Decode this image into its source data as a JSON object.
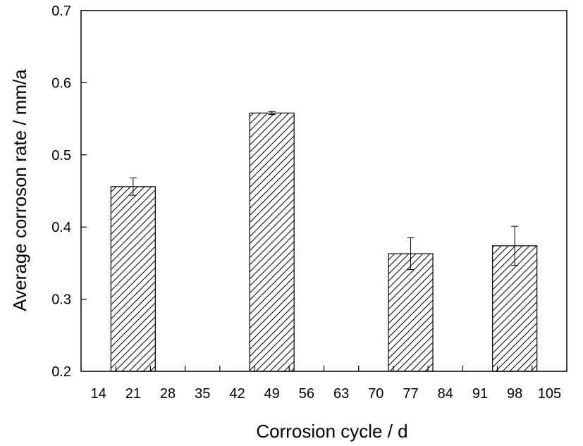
{
  "chart_data": {
    "type": "bar",
    "title": "",
    "xlabel": "Corrosion cycle / d",
    "ylabel": "Average corroson rate / mm/a",
    "x_ticks": [
      "14",
      "21",
      "28",
      "35",
      "42",
      "49",
      "56",
      "63",
      "70",
      "77",
      "84",
      "91",
      "98",
      "105"
    ],
    "y_ticks": [
      "0.2",
      "0.3",
      "0.4",
      "0.5",
      "0.6",
      "0.7"
    ],
    "ylim": [
      0.2,
      0.7
    ],
    "categories": [
      "21",
      "49",
      "77",
      "98"
    ],
    "values": [
      0.456,
      0.558,
      0.363,
      0.374
    ],
    "errors": [
      0.012,
      0.002,
      0.022,
      0.027
    ],
    "bar_fill": "hatched-diagonal",
    "grid": false,
    "colors": {
      "bar_stroke": "#000000",
      "hatch": "#000000",
      "background": "#ffffff"
    }
  }
}
